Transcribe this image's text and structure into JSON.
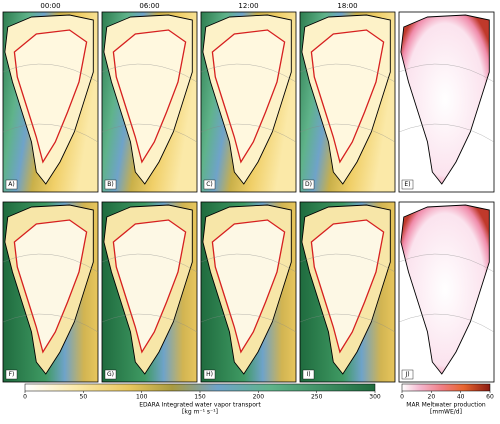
{
  "columns": [
    "00:00",
    "06:00",
    "12:00",
    "18:00"
  ],
  "panels": [
    "A)",
    "B)",
    "C)",
    "D)",
    "E)",
    "F)",
    "G)",
    "H)",
    "I)",
    "J)"
  ],
  "colorbar_left": {
    "ticks": [
      0,
      50,
      100,
      150,
      200,
      250,
      300
    ],
    "label": "EDARA Integrated water vapor transport",
    "units": "[kg m⁻¹ s⁻¹]"
  },
  "colorbar_right": {
    "ticks": [
      0,
      20,
      40,
      60
    ],
    "label": "MAR Meltwater production",
    "units": "[mmWE/d]"
  }
}
